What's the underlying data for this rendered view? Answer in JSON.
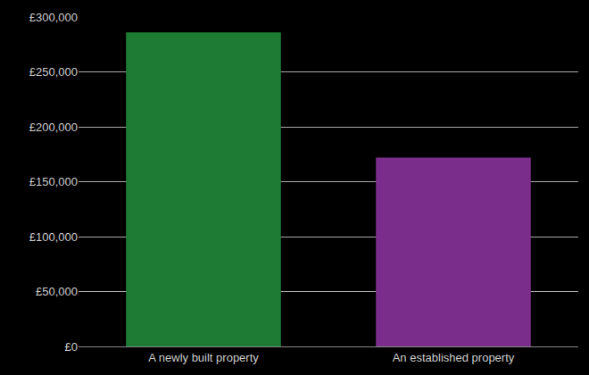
{
  "chart_data": {
    "type": "bar",
    "categories": [
      "A newly built property",
      "An established property"
    ],
    "values": [
      286000,
      172000
    ],
    "colors": [
      "#1e7b34",
      "#7b2d8b"
    ],
    "ylim": [
      0,
      300000
    ],
    "yticks": [
      {
        "value": 0,
        "label": "£0"
      },
      {
        "value": 50000,
        "label": "£50,000"
      },
      {
        "value": 100000,
        "label": "£100,000"
      },
      {
        "value": 150000,
        "label": "£150,000"
      },
      {
        "value": 200000,
        "label": "£200,000"
      },
      {
        "value": 250000,
        "label": "£250,000"
      },
      {
        "value": 300000,
        "label": "£300,000"
      }
    ],
    "grid": true
  }
}
